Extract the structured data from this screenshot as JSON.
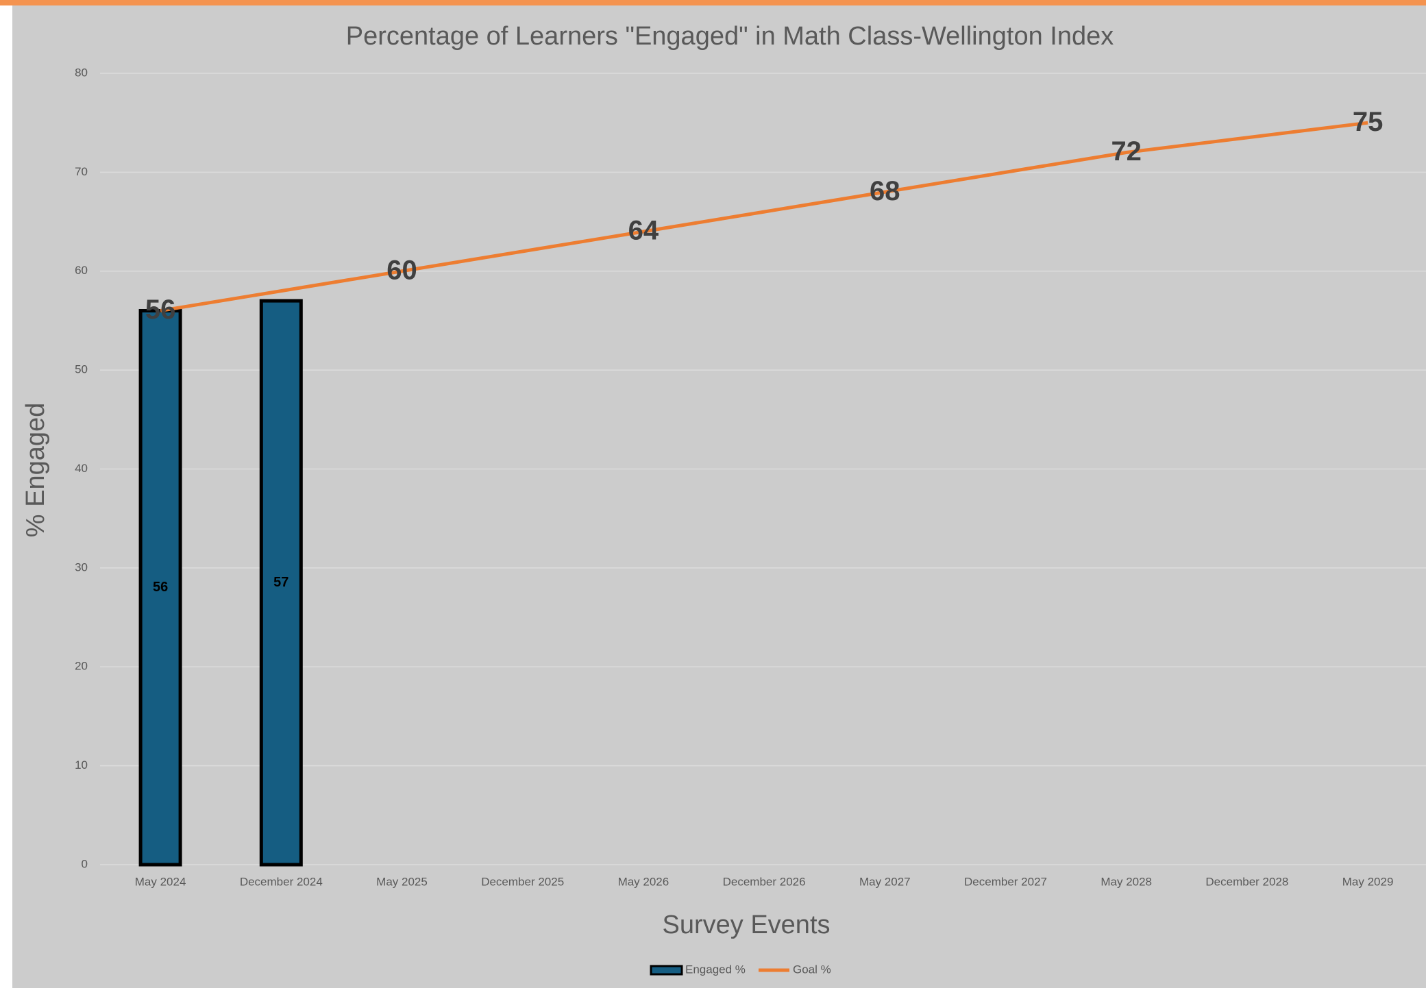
{
  "chart_data": {
    "type": "bar-line",
    "title": "Percentage of Learners \"Engaged\" in Math Class-Wellington Index",
    "x_label": "Survey Events",
    "y_label": "% Engaged",
    "categories": [
      "May 2024",
      "December 2024",
      "May 2025",
      "December 2025",
      "May 2026",
      "December 2026",
      "May 2027",
      "December 2027",
      "May 2028",
      "December 2028",
      "May 2029"
    ],
    "series": [
      {
        "name": "Engaged %",
        "type": "bar",
        "color": "#155d82",
        "values": [
          56,
          57,
          null,
          null,
          null,
          null,
          null,
          null,
          null,
          null,
          null
        ]
      },
      {
        "name": "Goal %",
        "type": "line",
        "color": "#ed7d31",
        "values": [
          56,
          58,
          60,
          62,
          64,
          66,
          68,
          70,
          72,
          73.5,
          75
        ],
        "value_labels": [
          "56",
          null,
          "60",
          null,
          "64",
          null,
          "68",
          null,
          "72",
          null,
          "75"
        ]
      }
    ],
    "ylim": [
      0,
      80
    ],
    "yticks": [
      0,
      10,
      20,
      30,
      40,
      50,
      60,
      70,
      80
    ],
    "grid": true,
    "legend": "bottom"
  }
}
